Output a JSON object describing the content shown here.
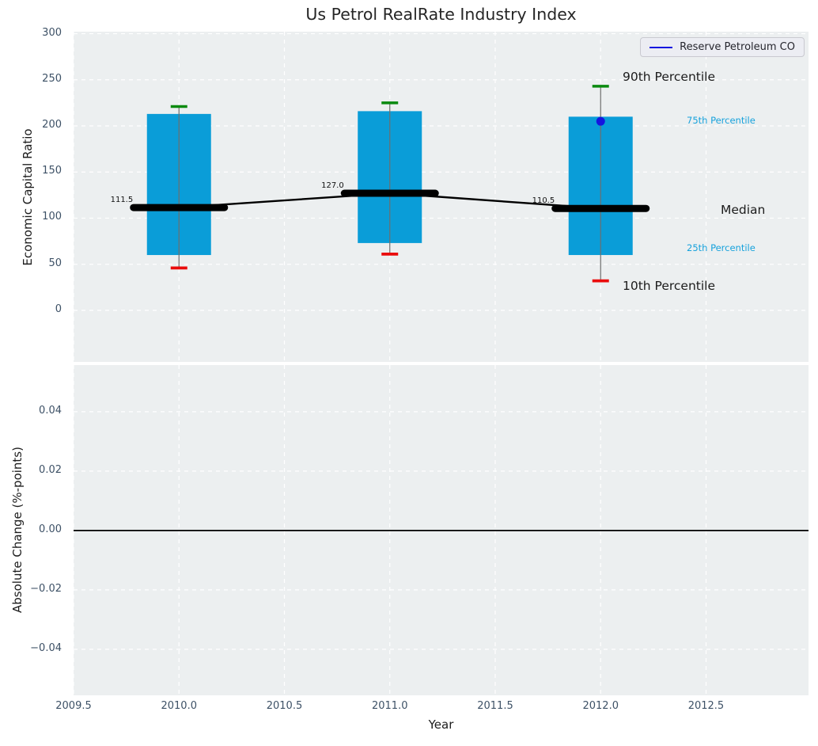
{
  "title": "Us Petrol RealRate Industry Index",
  "legend": {
    "label": "Reserve Petroleum CO",
    "line_color": "#1515e0"
  },
  "x_axis": {
    "label": "Year",
    "tick_labels": [
      "2009.5",
      "2010.0",
      "2010.5",
      "2011.0",
      "2011.5",
      "2012.0",
      "2012.5"
    ],
    "tick_values": [
      2009.5,
      2010.0,
      2010.5,
      2011.0,
      2011.5,
      2012.0,
      2012.5
    ],
    "lim": [
      2009.5,
      2012.986
    ]
  },
  "top_axis": {
    "ylabel": "Economic Capital Ratio",
    "tick_labels": [
      "300",
      "250",
      "200",
      "150",
      "100",
      "50",
      "0"
    ],
    "tick_values": [
      300,
      250,
      200,
      150,
      100,
      50,
      0
    ],
    "lim": [
      -55.9,
      302.2
    ]
  },
  "bottom_axis": {
    "ylabel": "Absolute Change (%-points)",
    "tick_labels": [
      "0.04",
      "0.02",
      "0.00",
      "−0.02",
      "−0.04"
    ],
    "tick_values": [
      0.04,
      0.02,
      0.0,
      -0.02,
      -0.04
    ],
    "lim": [
      -0.0555,
      0.0557
    ],
    "zero_line_value": 0.0
  },
  "annotations": {
    "p90": "90th Percentile",
    "p75": "75th Percentile",
    "median": "Median",
    "p25": "25th Percentile",
    "p10": "10th Percentile"
  },
  "chart_data": {
    "type": "bar",
    "subtype": "percentile-box-columns with median line and company marker; lower panel empty except zero line",
    "title": "Us Petrol RealRate Industry Index",
    "xlabel": "Year",
    "ylabel_top": "Economic Capital Ratio",
    "ylabel_bottom": "Absolute Change (%-points)",
    "grid": "white dashed on light gray background",
    "legend_position": "upper right",
    "categories": [
      2010,
      2011,
      2012
    ],
    "boxes": [
      {
        "year": 2010,
        "p90": 221,
        "p75": 213,
        "median": 111.5,
        "p25": 60,
        "p10": 46,
        "median_label": "111.5"
      },
      {
        "year": 2011,
        "p90": 225,
        "p75": 216,
        "median": 127.0,
        "p25": 73,
        "p10": 61,
        "median_label": "127.0"
      },
      {
        "year": 2012,
        "p90": 243,
        "p75": 210,
        "median": 110.5,
        "p25": 60,
        "p10": 32,
        "median_label": "110.5"
      }
    ],
    "median_series": {
      "x": [
        2010,
        2011,
        2012
      ],
      "y": [
        111.5,
        127.0,
        110.5
      ]
    },
    "company_series": {
      "name": "Reserve Petroleum CO",
      "points": [
        {
          "x": 2012,
          "y": 205
        }
      ]
    },
    "bottom_panel": {
      "series": [],
      "zero_line": 0.0
    },
    "colors": {
      "bar": "#0a9dd8",
      "p90_cap": "#0a8a0f",
      "p10_cap": "#ea0c0c",
      "median": "#000000",
      "whisker": "#6e6e6e",
      "company": "#1515e0",
      "plot_bg": "#eceff0",
      "grid": "#ffffff",
      "tick_text": "#3d5166",
      "percentile_text": "#17a2dc"
    }
  }
}
